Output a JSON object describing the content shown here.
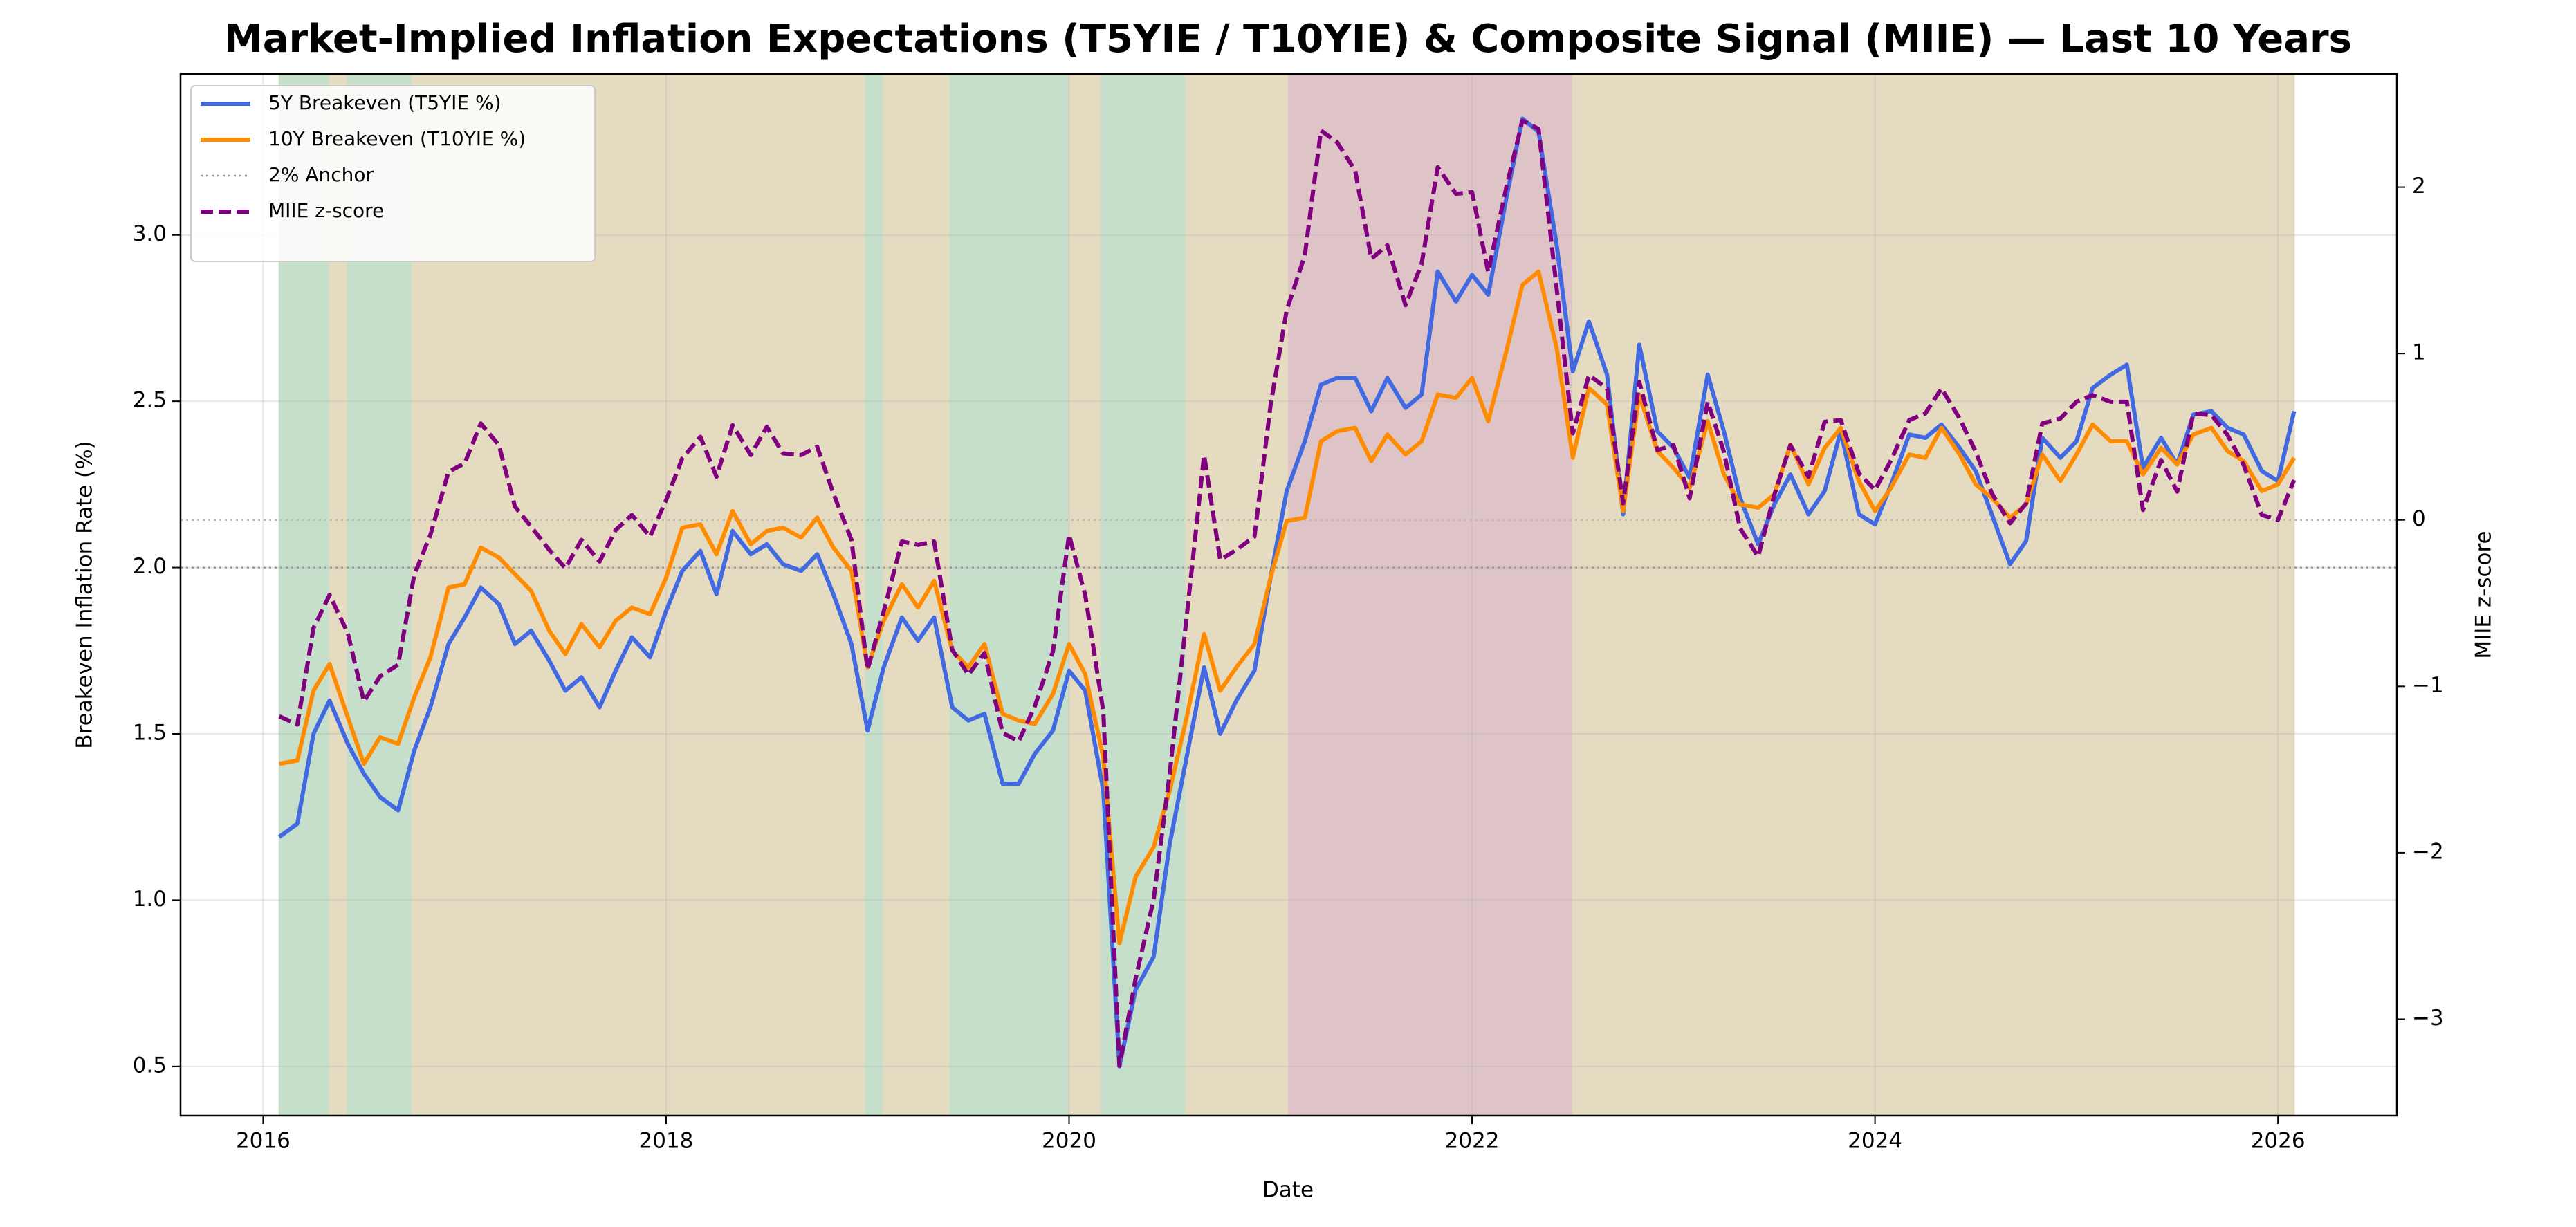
{
  "chart_data": {
    "type": "line",
    "title": "Market-Implied Inflation Expectations (T5YIE / T10YIE) & Composite Signal (MIIE) — Last 10 Years",
    "x_label": "Date",
    "y_label": "Breakeven Inflation Rate (%)",
    "y2_label": "MIIE z-score",
    "grid": true,
    "legend": "upper left",
    "xlim": [
      2015.59,
      2026.59
    ],
    "xticks": [
      2016,
      2018,
      2020,
      2022,
      2024,
      2026
    ],
    "ylim": [
      0.352,
      3.484
    ],
    "yticks": [
      0.5,
      {
        "value": 1,
        "label": "1.0"
      },
      1.5,
      {
        "value": 2,
        "label": "2.0"
      },
      2.5,
      {
        "value": 3,
        "label": "3.0"
      }
    ],
    "y_color": "#4169e1",
    "y2lim": [
      -3.58,
      2.68
    ],
    "y2ticks": [
      {
        "value": -3,
        "label": "−3"
      },
      {
        "value": -2,
        "label": "−2"
      },
      {
        "value": -1,
        "label": "−1"
      },
      0,
      1,
      2
    ],
    "y2_color": "#800080",
    "x": [
      2016.08,
      2016.17,
      2016.25,
      2016.33,
      2016.42,
      2016.5,
      2016.58,
      2016.67,
      2016.75,
      2016.83,
      2016.92,
      2017.0,
      2017.08,
      2017.17,
      2017.25,
      2017.33,
      2017.42,
      2017.5,
      2017.58,
      2017.67,
      2017.75,
      2017.83,
      2017.92,
      2018.0,
      2018.08,
      2018.17,
      2018.25,
      2018.33,
      2018.42,
      2018.5,
      2018.58,
      2018.67,
      2018.75,
      2018.83,
      2018.92,
      2019.0,
      2019.08,
      2019.17,
      2019.25,
      2019.33,
      2019.42,
      2019.5,
      2019.58,
      2019.67,
      2019.75,
      2019.83,
      2019.92,
      2020.0,
      2020.08,
      2020.17,
      2020.25,
      2020.33,
      2020.42,
      2020.5,
      2020.58,
      2020.67,
      2020.75,
      2020.83,
      2020.92,
      2021.0,
      2021.08,
      2021.17,
      2021.25,
      2021.33,
      2021.42,
      2021.5,
      2021.58,
      2021.67,
      2021.75,
      2021.83,
      2021.92,
      2022.0,
      2022.08,
      2022.17,
      2022.25,
      2022.33,
      2022.42,
      2022.5,
      2022.58,
      2022.67,
      2022.75,
      2022.83,
      2022.92,
      2023.0,
      2023.08,
      2023.17,
      2023.25,
      2023.33,
      2023.42,
      2023.5,
      2023.58,
      2023.67,
      2023.75,
      2023.83,
      2023.92,
      2024.0,
      2024.08,
      2024.17,
      2024.25,
      2024.33,
      2024.42,
      2024.5,
      2024.58,
      2024.67,
      2024.75,
      2024.83,
      2024.92,
      2025.0,
      2025.08,
      2025.17,
      2025.25,
      2025.33,
      2025.42,
      2025.5,
      2025.58,
      2025.67,
      2025.75,
      2025.83,
      2025.92,
      2026.0,
      2026.08
    ],
    "series": [
      {
        "name": "5Y Breakeven (T5YIE %)",
        "color": "#4169e1",
        "linestyle": "solid",
        "axis": "y",
        "values": [
          1.19,
          1.23,
          1.5,
          1.6,
          1.47,
          1.38,
          1.31,
          1.27,
          1.45,
          1.58,
          1.77,
          1.85,
          1.94,
          1.89,
          1.77,
          1.81,
          1.72,
          1.63,
          1.67,
          1.58,
          1.69,
          1.79,
          1.73,
          1.87,
          1.99,
          2.05,
          1.92,
          2.11,
          2.04,
          2.07,
          2.01,
          1.99,
          2.04,
          1.92,
          1.77,
          1.51,
          1.7,
          1.85,
          1.78,
          1.85,
          1.58,
          1.54,
          1.56,
          1.35,
          1.35,
          1.44,
          1.51,
          1.69,
          1.63,
          1.33,
          0.5,
          0.73,
          0.83,
          1.17,
          1.42,
          1.7,
          1.5,
          1.6,
          1.69,
          1.97,
          2.23,
          2.38,
          2.55,
          2.57,
          2.57,
          2.47,
          2.57,
          2.48,
          2.52,
          2.89,
          2.8,
          2.88,
          2.82,
          3.11,
          3.35,
          3.31,
          2.97,
          2.59,
          2.74,
          2.58,
          2.16,
          2.67,
          2.41,
          2.36,
          2.27,
          2.58,
          2.41,
          2.21,
          2.07,
          2.19,
          2.28,
          2.16,
          2.23,
          2.41,
          2.16,
          2.13,
          2.25,
          2.4,
          2.39,
          2.43,
          2.36,
          2.29,
          2.16,
          2.01,
          2.08,
          2.39,
          2.33,
          2.38,
          2.54,
          2.58,
          2.61,
          2.3,
          2.39,
          2.31,
          2.46,
          2.47,
          2.42,
          2.4,
          2.29,
          2.26,
          2.47
        ]
      },
      {
        "name": "10Y Breakeven (T10YIE %)",
        "color": "#ff8c00",
        "linestyle": "solid",
        "axis": "y",
        "values": [
          1.41,
          1.42,
          1.63,
          1.71,
          1.55,
          1.41,
          1.49,
          1.47,
          1.61,
          1.73,
          1.94,
          1.95,
          2.06,
          2.03,
          1.98,
          1.93,
          1.81,
          1.74,
          1.83,
          1.76,
          1.84,
          1.88,
          1.86,
          1.97,
          2.12,
          2.13,
          2.04,
          2.17,
          2.07,
          2.11,
          2.12,
          2.09,
          2.15,
          2.06,
          1.99,
          1.7,
          1.84,
          1.95,
          1.88,
          1.96,
          1.75,
          1.7,
          1.77,
          1.56,
          1.54,
          1.53,
          1.62,
          1.77,
          1.68,
          1.43,
          0.87,
          1.07,
          1.16,
          1.33,
          1.54,
          1.8,
          1.63,
          1.7,
          1.77,
          1.97,
          2.14,
          2.15,
          2.38,
          2.41,
          2.42,
          2.32,
          2.4,
          2.34,
          2.38,
          2.52,
          2.51,
          2.57,
          2.44,
          2.65,
          2.85,
          2.89,
          2.66,
          2.33,
          2.54,
          2.49,
          2.17,
          2.52,
          2.35,
          2.3,
          2.24,
          2.44,
          2.28,
          2.19,
          2.18,
          2.22,
          2.37,
          2.25,
          2.36,
          2.42,
          2.26,
          2.17,
          2.24,
          2.34,
          2.33,
          2.42,
          2.34,
          2.25,
          2.21,
          2.15,
          2.19,
          2.34,
          2.26,
          2.34,
          2.43,
          2.38,
          2.38,
          2.28,
          2.36,
          2.31,
          2.4,
          2.42,
          2.35,
          2.32,
          2.23,
          2.25,
          2.33
        ]
      },
      {
        "name": "MIIE z-score",
        "color": "#800080",
        "linestyle": "dashed",
        "axis": "y2",
        "values": [
          -1.18,
          -1.23,
          -0.65,
          -0.45,
          -0.68,
          -1.09,
          -0.94,
          -0.87,
          -0.33,
          -0.09,
          0.29,
          0.34,
          0.58,
          0.45,
          0.08,
          -0.04,
          -0.18,
          -0.29,
          -0.12,
          -0.25,
          -0.06,
          0.03,
          -0.1,
          0.12,
          0.37,
          0.5,
          0.26,
          0.57,
          0.39,
          0.56,
          0.4,
          0.39,
          0.44,
          0.16,
          -0.12,
          -0.9,
          -0.55,
          -0.13,
          -0.15,
          -0.13,
          -0.78,
          -0.93,
          -0.8,
          -1.28,
          -1.33,
          -1.12,
          -0.79,
          -0.09,
          -0.45,
          -1.15,
          -3.28,
          -2.76,
          -2.28,
          -1.52,
          -0.62,
          0.39,
          -0.24,
          -0.18,
          -0.1,
          0.69,
          1.26,
          1.59,
          2.34,
          2.27,
          2.1,
          1.57,
          1.65,
          1.29,
          1.54,
          2.12,
          1.96,
          1.97,
          1.49,
          2.0,
          2.4,
          2.35,
          1.39,
          0.52,
          0.87,
          0.79,
          0.1,
          0.83,
          0.42,
          0.45,
          0.13,
          0.71,
          0.41,
          -0.05,
          -0.22,
          0.15,
          0.45,
          0.26,
          0.59,
          0.6,
          0.28,
          0.18,
          0.36,
          0.6,
          0.64,
          0.79,
          0.61,
          0.41,
          0.16,
          -0.02,
          0.1,
          0.58,
          0.61,
          0.71,
          0.75,
          0.71,
          0.71,
          0.06,
          0.36,
          0.17,
          0.64,
          0.63,
          0.51,
          0.33,
          0.03,
          0.0,
          0.24
        ]
      }
    ],
    "reference_lines": [
      {
        "name": "2% Anchor",
        "value": 2,
        "axis": "y",
        "color": "#999999",
        "linestyle": "dotted"
      },
      {
        "value": 0,
        "axis": "y2",
        "color": "#bbbbbb",
        "linestyle": "dotted"
      }
    ],
    "shaded_regions": [
      {
        "start": 2016.08,
        "end": 2016.33,
        "color": "#d5f0da"
      },
      {
        "start": 2016.33,
        "end": 2016.42,
        "color": "#f5ecd0"
      },
      {
        "start": 2016.42,
        "end": 2016.74,
        "color": "#d5f0da"
      },
      {
        "start": 2016.74,
        "end": 2018.99,
        "color": "#f5ecd0"
      },
      {
        "start": 2018.99,
        "end": 2019.08,
        "color": "#d5f0da"
      },
      {
        "start": 2019.08,
        "end": 2019.41,
        "color": "#f5ecd0"
      },
      {
        "start": 2019.41,
        "end": 2020.0,
        "color": "#d5f0da"
      },
      {
        "start": 2020.0,
        "end": 2020.16,
        "color": "#f5ecd0"
      },
      {
        "start": 2020.16,
        "end": 2020.58,
        "color": "#d5f0da"
      },
      {
        "start": 2020.58,
        "end": 2021.09,
        "color": "#f5ecd0"
      },
      {
        "start": 2021.09,
        "end": 2022.5,
        "color": "#f0d3d6"
      },
      {
        "start": 2022.5,
        "end": 2026.08,
        "color": "#f5ecd0"
      }
    ]
  }
}
